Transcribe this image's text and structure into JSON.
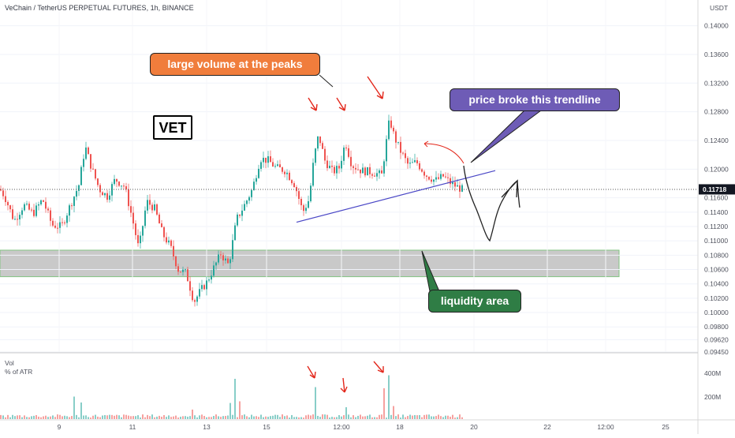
{
  "header": {
    "title": "VeChain / TetherUS PERPETUAL FUTURES, 1h, BINANCE"
  },
  "price_axis": {
    "currency_label": "USDT",
    "ticks": [
      "0.14000",
      "0.13600",
      "0.13200",
      "0.12800",
      "0.12400",
      "0.12000",
      "0.11600",
      "0.11400",
      "0.11200",
      "0.11000",
      "0.10800",
      "0.10600",
      "0.10400",
      "0.10200",
      "0.10000",
      "0.09800",
      "0.09620",
      "0.09450"
    ],
    "current_price": "0.11718"
  },
  "volume_pane": {
    "label": "Vol",
    "sublabel": "% of ATR",
    "ticks": [
      "400M",
      "200M"
    ]
  },
  "time_axis": {
    "ticks": [
      "9",
      "11",
      "13",
      "15",
      "12:00",
      "18",
      "20",
      "22",
      "12:00",
      "25"
    ]
  },
  "annotations": {
    "volume_peaks": "large volume at the peaks",
    "trendline": "price broke this trendline",
    "liquidity": "liquidity area",
    "ticker": "VET"
  },
  "colors": {
    "up_candle": "#26a69a",
    "down_candle": "#ef5350",
    "liquidity_zone": "#c0c0c0",
    "trendline": "#4a47c6",
    "arrow_red": "#e3271b",
    "callout_orange": "#f07d3c",
    "callout_purple": "#6e5cb6",
    "callout_green": "#2f7d45"
  },
  "chart_data": {
    "type": "candlestick",
    "title": "VeChain / TetherUS PERPETUAL FUTURES, 1h, BINANCE",
    "y_unit": "USDT",
    "ylim": [
      0.0945,
      0.1415
    ],
    "close_path": [
      [
        0,
        0.1172
      ],
      [
        6,
        0.1162
      ],
      [
        18,
        0.1128
      ],
      [
        30,
        0.115
      ],
      [
        42,
        0.1138
      ],
      [
        54,
        0.1158
      ],
      [
        66,
        0.1122
      ],
      [
        78,
        0.112
      ],
      [
        90,
        0.1152
      ],
      [
        100,
        0.1178
      ],
      [
        108,
        0.1232
      ],
      [
        116,
        0.1202
      ],
      [
        126,
        0.1172
      ],
      [
        136,
        0.1162
      ],
      [
        146,
        0.1186
      ],
      [
        158,
        0.1176
      ],
      [
        168,
        0.113
      ],
      [
        176,
        0.1088
      ],
      [
        186,
        0.1155
      ],
      [
        196,
        0.1145
      ],
      [
        206,
        0.111
      ],
      [
        216,
        0.1092
      ],
      [
        226,
        0.106
      ],
      [
        236,
        0.1055
      ],
      [
        246,
        0.1015
      ],
      [
        254,
        0.103
      ],
      [
        262,
        0.1042
      ],
      [
        270,
        0.106
      ],
      [
        280,
        0.1082
      ],
      [
        290,
        0.1066
      ],
      [
        300,
        0.113
      ],
      [
        310,
        0.115
      ],
      [
        320,
        0.1172
      ],
      [
        330,
        0.1215
      ],
      [
        340,
        0.1212
      ],
      [
        350,
        0.1202
      ],
      [
        362,
        0.1198
      ],
      [
        374,
        0.1178
      ],
      [
        384,
        0.114
      ],
      [
        392,
        0.1158
      ],
      [
        398,
        0.1215
      ],
      [
        404,
        0.1248
      ],
      [
        412,
        0.1212
      ],
      [
        422,
        0.1196
      ],
      [
        430,
        0.1202
      ],
      [
        438,
        0.1238
      ],
      [
        446,
        0.1206
      ],
      [
        458,
        0.1198
      ],
      [
        470,
        0.1196
      ],
      [
        484,
        0.1192
      ],
      [
        494,
        0.127
      ],
      [
        500,
        0.1245
      ],
      [
        508,
        0.1225
      ],
      [
        518,
        0.1205
      ],
      [
        528,
        0.121
      ],
      [
        540,
        0.1192
      ],
      [
        552,
        0.1184
      ],
      [
        562,
        0.119
      ],
      [
        572,
        0.118
      ],
      [
        580,
        0.1175
      ],
      [
        586,
        0.11718
      ]
    ],
    "x_ticks": [
      "9",
      "11",
      "13",
      "15",
      "12:00",
      "18",
      "20",
      "22",
      "12:00",
      "25"
    ],
    "volume_spikes_M": [
      [
        95,
        95
      ],
      [
        104,
        70
      ],
      [
        244,
        40
      ],
      [
        292,
        68
      ],
      [
        298,
        170
      ],
      [
        304,
        75
      ],
      [
        400,
        135
      ],
      [
        440,
        50
      ],
      [
        487,
        130
      ],
      [
        492,
        185
      ],
      [
        500,
        55
      ]
    ],
    "volume_ticks": [
      "400M",
      "200M"
    ],
    "liquidity_zone": [
      0.105,
      0.1087
    ],
    "trendline": {
      "from": [
        376,
        0.1126
      ],
      "to": [
        628,
        0.1198
      ]
    },
    "current_price": 0.11718
  }
}
